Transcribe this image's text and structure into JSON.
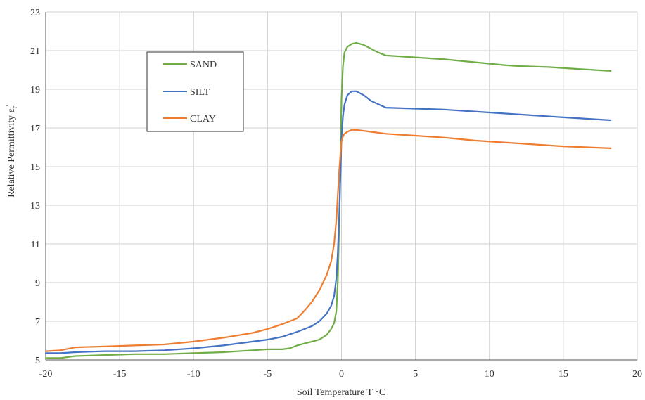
{
  "chart_data": {
    "type": "line",
    "title": "",
    "xlabel": "Soil Temperature T  °C",
    "ylabel": "Relative Permittivity ε",
    "ylabel_subscript": "r",
    "ylabel_prime": "'",
    "xlim": [
      -20,
      20
    ],
    "ylim": [
      5,
      23
    ],
    "xticks": [
      -20,
      -15,
      -10,
      -5,
      0,
      5,
      10,
      15,
      20
    ],
    "yticks": [
      5,
      7,
      9,
      11,
      13,
      15,
      17,
      19,
      21,
      23
    ],
    "grid": true,
    "legend_position": "upper-left",
    "series": [
      {
        "name": "SAND",
        "color": "#70ad47",
        "x": [
          -20,
          -19,
          -18,
          -16,
          -14,
          -12,
          -10,
          -8,
          -6,
          -5,
          -4,
          -3.5,
          -3,
          -2.5,
          -2,
          -1.5,
          -1,
          -0.7,
          -0.5,
          -0.35,
          -0.25,
          -0.15,
          -0.05,
          0,
          0.1,
          0.2,
          0.4,
          0.7,
          1,
          1.5,
          2,
          2.5,
          3,
          5,
          7,
          9,
          11,
          12,
          14,
          16,
          18.2
        ],
        "y": [
          5.1,
          5.1,
          5.2,
          5.25,
          5.3,
          5.3,
          5.35,
          5.4,
          5.5,
          5.55,
          5.55,
          5.6,
          5.75,
          5.85,
          5.95,
          6.05,
          6.3,
          6.6,
          6.9,
          7.5,
          9.0,
          12.0,
          16.0,
          18.5,
          20.2,
          20.9,
          21.2,
          21.35,
          21.4,
          21.3,
          21.1,
          20.9,
          20.75,
          20.65,
          20.55,
          20.4,
          20.25,
          20.2,
          20.15,
          20.05,
          19.95
        ]
      },
      {
        "name": "SILT",
        "color": "#4472c4",
        "x": [
          -20,
          -19,
          -18,
          -16,
          -14,
          -12,
          -10,
          -8,
          -6,
          -5,
          -4,
          -3,
          -2,
          -1.5,
          -1,
          -0.7,
          -0.5,
          -0.35,
          -0.25,
          -0.15,
          -0.05,
          0,
          0.1,
          0.2,
          0.4,
          0.7,
          1,
          1.5,
          2,
          3,
          5,
          7,
          9,
          11,
          13,
          15,
          18.2
        ],
        "y": [
          5.35,
          5.35,
          5.4,
          5.45,
          5.45,
          5.5,
          5.6,
          5.75,
          5.95,
          6.05,
          6.2,
          6.45,
          6.75,
          7.0,
          7.4,
          7.8,
          8.3,
          9.2,
          10.5,
          12.5,
          15.0,
          16.5,
          17.6,
          18.2,
          18.7,
          18.9,
          18.9,
          18.7,
          18.4,
          18.05,
          18.0,
          17.95,
          17.85,
          17.75,
          17.65,
          17.55,
          17.4
        ]
      },
      {
        "name": "CLAY",
        "color": "#ed7d31",
        "x": [
          -20,
          -19,
          -18,
          -16,
          -14,
          -12,
          -10,
          -8,
          -6,
          -5,
          -4,
          -3,
          -2.5,
          -2,
          -1.5,
          -1,
          -0.7,
          -0.5,
          -0.35,
          -0.25,
          -0.15,
          -0.05,
          0,
          0.1,
          0.2,
          0.4,
          0.7,
          1,
          1.5,
          2,
          3,
          5,
          7,
          9,
          11,
          13,
          15,
          18.2
        ],
        "y": [
          5.45,
          5.5,
          5.65,
          5.7,
          5.75,
          5.8,
          5.95,
          6.15,
          6.4,
          6.6,
          6.85,
          7.15,
          7.55,
          8.0,
          8.6,
          9.4,
          10.1,
          11.0,
          12.2,
          13.5,
          14.8,
          15.8,
          16.3,
          16.55,
          16.7,
          16.8,
          16.9,
          16.9,
          16.85,
          16.8,
          16.7,
          16.6,
          16.5,
          16.35,
          16.25,
          16.15,
          16.05,
          15.95
        ]
      }
    ]
  }
}
